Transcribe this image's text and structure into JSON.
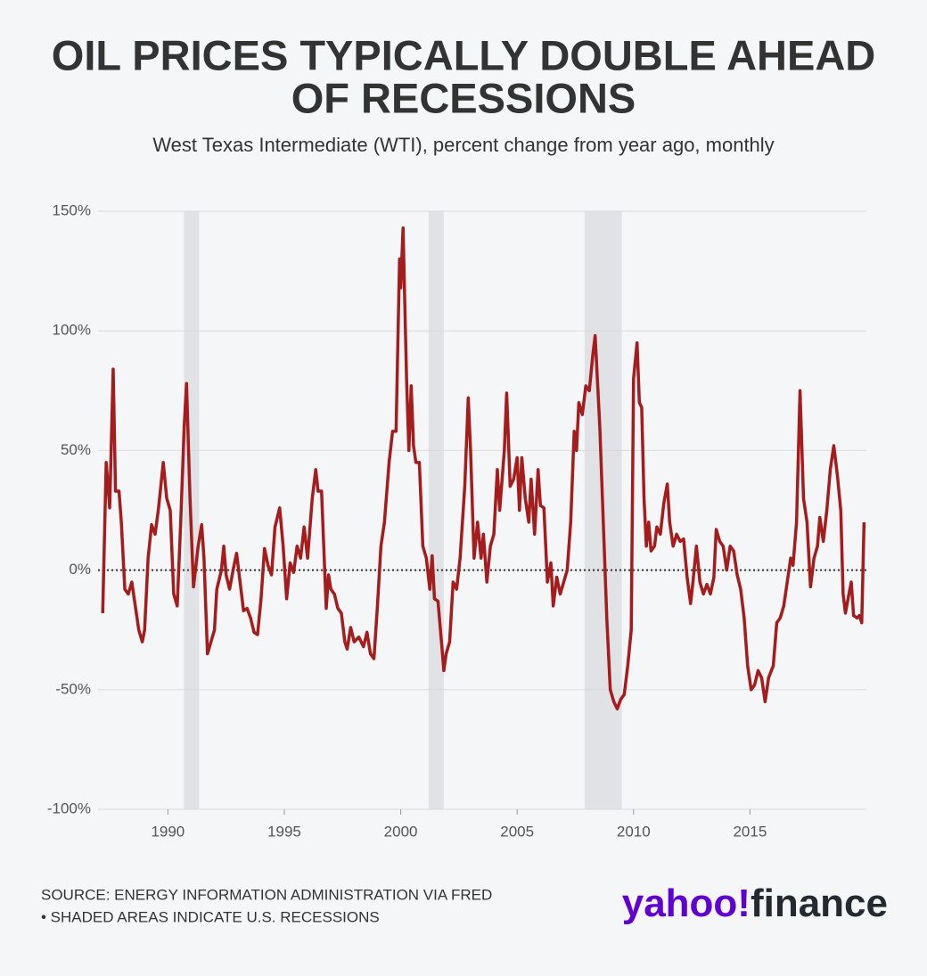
{
  "chart_data": {
    "type": "line",
    "title": "OIL PRICES TYPICALLY DOUBLE AHEAD OF RECESSIONS",
    "subtitle": "West Texas Intermediate (WTI), percent change from year ago, monthly",
    "source": "SOURCE: ENERGY INFORMATION ADMINISTRATION VIA FRED",
    "note": "• SHADED AREAS INDICATE U.S. RECESSIONS",
    "logo": {
      "brand": "yahoo!",
      "product": "finance"
    },
    "xlim": [
      1987,
      2020
    ],
    "xticks": [
      1990,
      1995,
      2000,
      2005,
      2010,
      2015
    ],
    "ylim": [
      -100,
      150
    ],
    "yticks": [
      {
        "value": -100,
        "label": "-100%"
      },
      {
        "value": -50,
        "label": "-50%"
      },
      {
        "value": 0,
        "label": "0%"
      },
      {
        "value": 50,
        "label": "50%"
      },
      {
        "value": 100,
        "label": "100%"
      },
      {
        "value": 150,
        "label": "150%"
      }
    ],
    "grid": true,
    "recessions": [
      [
        1990.69,
        1991.34
      ],
      [
        2001.2,
        2001.85
      ],
      [
        2007.9,
        2009.5
      ]
    ],
    "series": [
      {
        "name": "WTI",
        "color": "#a51c1c",
        "x": [
          1987.2,
          1987.35,
          1987.5,
          1987.65,
          1987.75,
          1987.9,
          1988.0,
          1988.15,
          1988.3,
          1988.45,
          1988.6,
          1988.75,
          1988.9,
          1989.0,
          1989.15,
          1989.3,
          1989.45,
          1989.6,
          1989.8,
          1989.95,
          1990.1,
          1990.25,
          1990.4,
          1990.55,
          1990.7,
          1990.8,
          1990.95,
          1991.1,
          1991.3,
          1991.45,
          1991.55,
          1991.7,
          1991.85,
          1992.0,
          1992.1,
          1992.3,
          1992.4,
          1992.5,
          1992.65,
          1992.8,
          1992.95,
          1993.1,
          1993.25,
          1993.4,
          1993.55,
          1993.7,
          1993.85,
          1994.0,
          1994.15,
          1994.3,
          1994.45,
          1994.6,
          1994.8,
          1994.95,
          1995.1,
          1995.25,
          1995.4,
          1995.55,
          1995.7,
          1995.85,
          1996.0,
          1996.2,
          1996.35,
          1996.45,
          1996.6,
          1996.8,
          1996.9,
          1997.0,
          1997.15,
          1997.3,
          1997.45,
          1997.6,
          1997.7,
          1997.85,
          1998.0,
          1998.2,
          1998.4,
          1998.55,
          1998.7,
          1998.85,
          1999.0,
          1999.15,
          1999.3,
          1999.5,
          1999.65,
          1999.8,
          1999.95,
          2000.0,
          2000.1,
          2000.25,
          2000.35,
          2000.45,
          2000.55,
          2000.65,
          2000.8,
          2000.95,
          2001.1,
          2001.25,
          2001.35,
          2001.45,
          2001.6,
          2001.75,
          2001.85,
          2001.95,
          2002.1,
          2002.25,
          2002.4,
          2002.55,
          2002.75,
          2002.9,
          2003.0,
          2003.15,
          2003.3,
          2003.45,
          2003.55,
          2003.7,
          2003.85,
          2004.0,
          2004.15,
          2004.25,
          2004.45,
          2004.55,
          2004.7,
          2004.85,
          2005.0,
          2005.1,
          2005.2,
          2005.35,
          2005.5,
          2005.6,
          2005.75,
          2005.9,
          2006.0,
          2006.15,
          2006.3,
          2006.45,
          2006.55,
          2006.7,
          2006.85,
          2007.0,
          2007.15,
          2007.3,
          2007.45,
          2007.55,
          2007.65,
          2007.8,
          2007.95,
          2008.1,
          2008.25,
          2008.35,
          2008.55,
          2008.7,
          2008.85,
          2009.0,
          2009.15,
          2009.3,
          2009.45,
          2009.6,
          2009.75,
          2009.9,
          2010.0,
          2010.15,
          2010.25,
          2010.35,
          2010.45,
          2010.55,
          2010.65,
          2010.75,
          2010.9,
          2011.0,
          2011.15,
          2011.3,
          2011.45,
          2011.55,
          2011.7,
          2011.85,
          2012.0,
          2012.15,
          2012.3,
          2012.45,
          2012.55,
          2012.7,
          2012.85,
          2013.0,
          2013.15,
          2013.3,
          2013.45,
          2013.55,
          2013.7,
          2013.85,
          2014.0,
          2014.15,
          2014.3,
          2014.45,
          2014.6,
          2014.75,
          2014.9,
          2015.05,
          2015.2,
          2015.35,
          2015.5,
          2015.65,
          2015.8,
          2016.0,
          2016.15,
          2016.3,
          2016.45,
          2016.6,
          2016.75,
          2016.85,
          2017.0,
          2017.15,
          2017.3,
          2017.45,
          2017.6,
          2017.75,
          2017.9,
          2018.0,
          2018.15,
          2018.3,
          2018.45,
          2018.6,
          2018.75,
          2018.9,
          2019.0,
          2019.1,
          2019.25,
          2019.35,
          2019.45,
          2019.6,
          2019.7,
          2019.8,
          2019.9
        ],
        "values": [
          -18,
          45,
          26,
          84,
          33,
          33,
          20,
          -8,
          -10,
          -5,
          -15,
          -25,
          -30,
          -25,
          5,
          19,
          15,
          26,
          45,
          30,
          25,
          -10,
          -15,
          20,
          60,
          78,
          30,
          -7,
          10,
          19,
          5,
          -35,
          -30,
          -25,
          -8,
          0,
          10,
          -2,
          -8,
          0,
          7,
          -5,
          -17,
          -16,
          -20,
          -26,
          -27,
          -12,
          9,
          2,
          -2,
          18,
          26,
          10,
          -12,
          3,
          -1,
          10,
          5,
          18,
          5,
          30,
          42,
          33,
          33,
          -16,
          -2,
          -8,
          -10,
          -16,
          -18,
          -30,
          -33,
          -24,
          -30,
          -28,
          -32,
          -26,
          -35,
          -37,
          -15,
          10,
          20,
          45,
          58,
          58,
          130,
          118,
          143,
          80,
          50,
          77,
          52,
          45,
          45,
          10,
          5,
          -8,
          6,
          -12,
          -13,
          -30,
          -42,
          -35,
          -30,
          -5,
          -8,
          5,
          35,
          72,
          50,
          5,
          20,
          5,
          15,
          -5,
          10,
          15,
          42,
          25,
          50,
          74,
          35,
          38,
          47,
          25,
          47,
          30,
          20,
          38,
          15,
          42,
          27,
          26,
          -5,
          3,
          -15,
          -3,
          -10,
          -5,
          0,
          20,
          58,
          50,
          70,
          65,
          77,
          75,
          90,
          98,
          60,
          20,
          -20,
          -50,
          -55,
          -58,
          -54,
          -52,
          -40,
          -25,
          80,
          95,
          70,
          68,
          30,
          10,
          20,
          8,
          10,
          18,
          15,
          28,
          36,
          20,
          10,
          15,
          12,
          13,
          -3,
          -14,
          -5,
          10,
          -5,
          -10,
          -6,
          -10,
          -3,
          17,
          12,
          10,
          0,
          10,
          8,
          -2,
          -8,
          -20,
          -40,
          -50,
          -48,
          -42,
          -45,
          -55,
          -45,
          -40,
          -22,
          -20,
          -15,
          -5,
          5,
          2,
          20,
          75,
          30,
          20,
          -7,
          5,
          10,
          22,
          12,
          25,
          42,
          52,
          40,
          25,
          -10,
          -18,
          -10,
          -5,
          -19,
          -20,
          -19,
          -22,
          20
        ]
      }
    ]
  }
}
